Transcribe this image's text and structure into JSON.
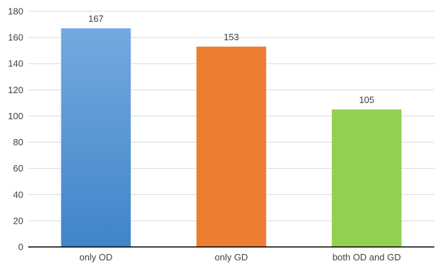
{
  "chart_data": {
    "type": "bar",
    "categories": [
      "only OD",
      "only GD",
      "both OD and GD"
    ],
    "values": [
      167,
      153,
      105
    ],
    "data_labels": [
      "167",
      "153",
      "105"
    ],
    "yticks": [
      "0",
      "20",
      "40",
      "60",
      "80",
      "100",
      "120",
      "140",
      "160",
      "180"
    ],
    "ylim": [
      0,
      180
    ],
    "grid": true,
    "legend": "none",
    "colors": {
      "only OD": {
        "top": "#75a9e0",
        "bottom": "#3f85c9"
      },
      "only GD": {
        "top": "#ed7d31",
        "bottom": "#ed7d31"
      },
      "both OD and GD": {
        "top": "#92d050",
        "bottom": "#92d050"
      }
    }
  }
}
